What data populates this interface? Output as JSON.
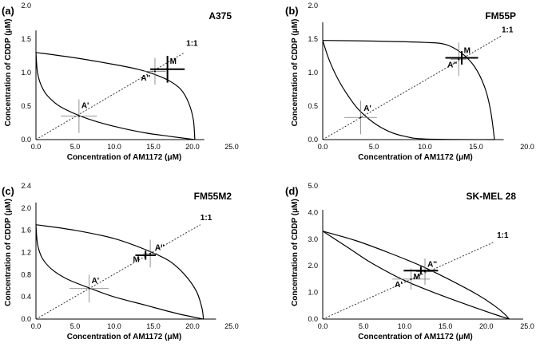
{
  "chart_data": [
    {
      "type": "line",
      "panel_label": "(a)",
      "title": "A375",
      "xlabel": "Concentration of AM1172 (μM)",
      "ylabel": "Concentration of CDDP (μM)",
      "xlim": [
        0,
        25
      ],
      "ylim": [
        0,
        2
      ],
      "xticks": [
        "0.0",
        "5.0",
        "10.0",
        "15.0",
        "20.0",
        "25.0"
      ],
      "yticks": [
        "0.0",
        "0.5",
        "1.0",
        "1.5",
        "2.0"
      ],
      "x_axis_end": 21.5,
      "y_axis_top": 1.63,
      "curves": {
        "upper": [
          [
            0,
            1.3
          ],
          [
            5,
            1.22
          ],
          [
            10,
            1.12
          ],
          [
            13,
            1.05
          ],
          [
            15,
            0.98
          ],
          [
            17,
            0.88
          ],
          [
            18.5,
            0.75
          ],
          [
            19.5,
            0.55
          ],
          [
            20.1,
            0.3
          ],
          [
            20.3,
            0
          ]
        ],
        "lower": [
          [
            0,
            1.3
          ],
          [
            0.2,
            1.0
          ],
          [
            0.7,
            0.8
          ],
          [
            1.5,
            0.65
          ],
          [
            3,
            0.5
          ],
          [
            5.5,
            0.36
          ],
          [
            8,
            0.26
          ],
          [
            11,
            0.17
          ],
          [
            14,
            0.1
          ],
          [
            17,
            0.05
          ],
          [
            20.3,
            0
          ]
        ]
      },
      "ratio_line": {
        "label": "1:1",
        "points": [
          [
            0,
            0
          ],
          [
            19,
            1.3
          ]
        ]
      },
      "points": [
        {
          "label": "A'",
          "x": 5.5,
          "y": 0.35,
          "xerr": 2.3,
          "yerr": 0.25,
          "label_dx": 0.3,
          "label_dy": 0.12
        },
        {
          "label": "A''",
          "x": 15.2,
          "y": 1.02,
          "xerr": 1.4,
          "yerr": 0.2,
          "label_dx": -1.8,
          "label_dy": -0.14
        },
        {
          "label": "M",
          "x": 16.8,
          "y": 1.05,
          "xerr": 2.2,
          "yerr": 0.2,
          "label_dx": 0.3,
          "label_dy": 0.08,
          "bold": true
        }
      ],
      "ratio_label_pos": [
        19.2,
        1.4
      ]
    },
    {
      "type": "line",
      "panel_label": "(b)",
      "title": "FM55P",
      "xlabel": "Concentration of AM1172 (μM)",
      "ylabel": "Concentration of CDDP (μM)",
      "xlim": [
        0,
        20
      ],
      "ylim": [
        0,
        2
      ],
      "xticks": [
        "0.0",
        "5.0",
        "10.0",
        "15.0",
        "20.0"
      ],
      "yticks": [
        "0.0",
        "0.5",
        "1.0",
        "1.5",
        "2.0"
      ],
      "x_axis_end": 17.7,
      "y_axis_top": 1.75,
      "curves": {
        "upper": [
          [
            0,
            1.48
          ],
          [
            5,
            1.47
          ],
          [
            10,
            1.45
          ],
          [
            12,
            1.42
          ],
          [
            13.5,
            1.3
          ],
          [
            14.8,
            1.1
          ],
          [
            15.8,
            0.8
          ],
          [
            16.4,
            0.45
          ],
          [
            16.8,
            0
          ]
        ],
        "lower": [
          [
            0,
            1.48
          ],
          [
            0.6,
            1.2
          ],
          [
            1.5,
            0.9
          ],
          [
            2.5,
            0.65
          ],
          [
            3.5,
            0.45
          ],
          [
            5,
            0.25
          ],
          [
            6.5,
            0.12
          ],
          [
            8,
            0.05
          ],
          [
            10,
            0.01
          ],
          [
            16.8,
            0
          ]
        ]
      },
      "ratio_line": {
        "label": "1:1",
        "points": [
          [
            0,
            0
          ],
          [
            17.5,
            1.55
          ]
        ]
      },
      "points": [
        {
          "label": "A'",
          "x": 3.7,
          "y": 0.33,
          "xerr": 1.6,
          "yerr": 0.25,
          "label_dx": 0.3,
          "label_dy": 0.1
        },
        {
          "label": "A''",
          "x": 13.3,
          "y": 1.2,
          "xerr": 0.8,
          "yerr": 0.25,
          "label_dx": -1.1,
          "label_dy": -0.12
        },
        {
          "label": "M",
          "x": 13.6,
          "y": 1.22,
          "xerr": 1.6,
          "yerr": 0.1,
          "label_dx": 0.2,
          "label_dy": 0.07,
          "bold": true
        }
      ],
      "ratio_label_pos": [
        17.5,
        1.6
      ]
    },
    {
      "type": "line",
      "panel_label": "(c)",
      "title": "FM55M2",
      "xlabel": "Concentration of AM1172 (μM)",
      "ylabel": "Concentration of CDDP (μM)",
      "xlim": [
        0,
        25
      ],
      "ylim": [
        0,
        2.4
      ],
      "xticks": [
        "0.0",
        "5.0",
        "10.0",
        "15.0",
        "20.0",
        "25.0"
      ],
      "yticks": [
        "0.0",
        "0.4",
        "0.8",
        "1.2",
        "1.6",
        "2.0",
        "2.4"
      ],
      "x_axis_end": 23,
      "y_axis_top": 2.1,
      "curves": {
        "upper": [
          [
            0,
            1.7
          ],
          [
            5,
            1.6
          ],
          [
            10,
            1.45
          ],
          [
            14,
            1.25
          ],
          [
            17,
            1.05
          ],
          [
            19,
            0.8
          ],
          [
            20.5,
            0.5
          ],
          [
            21.2,
            0.2
          ],
          [
            21.4,
            0
          ]
        ],
        "lower": [
          [
            0,
            1.7
          ],
          [
            0.2,
            1.35
          ],
          [
            0.8,
            1.1
          ],
          [
            2,
            0.9
          ],
          [
            4,
            0.72
          ],
          [
            7,
            0.55
          ],
          [
            10,
            0.4
          ],
          [
            14,
            0.25
          ],
          [
            18,
            0.1
          ],
          [
            21.4,
            0
          ]
        ]
      },
      "ratio_line": {
        "label": "1:1",
        "points": [
          [
            0,
            0
          ],
          [
            21,
            1.7
          ]
        ]
      },
      "points": [
        {
          "label": "A'",
          "x": 6.8,
          "y": 0.55,
          "xerr": 2.5,
          "yerr": 0.25,
          "label_dx": 0.3,
          "label_dy": 0.1
        },
        {
          "label": "A''",
          "x": 14.6,
          "y": 1.18,
          "xerr": 0.9,
          "yerr": 0.25,
          "label_dx": 0.6,
          "label_dy": 0.06
        },
        {
          "label": "M",
          "x": 14.0,
          "y": 1.15,
          "xerr": 1.3,
          "yerr": 0.08,
          "label_dx": -1.6,
          "label_dy": -0.12,
          "bold": true
        }
      ],
      "ratio_label_pos": [
        21,
        1.78
      ]
    },
    {
      "type": "line",
      "panel_label": "(d)",
      "title": "SK-MEL 28",
      "xlabel": "Concentration of AM1172 (μM)",
      "ylabel": "Concentration of CDDP (μM)",
      "xlim": [
        0,
        25
      ],
      "ylim": [
        0,
        5
      ],
      "xticks": [
        "0.0",
        "5.0",
        "10.0",
        "15.0",
        "20.0",
        "25.0"
      ],
      "yticks": [
        "0.0",
        "1.0",
        "2.0",
        "3.0",
        "4.0",
        "5.0"
      ],
      "x_axis_end": 24.5,
      "y_axis_top": 4.1,
      "curves": {
        "upper": [
          [
            0,
            3.3
          ],
          [
            4,
            2.95
          ],
          [
            8,
            2.5
          ],
          [
            12,
            2
          ],
          [
            16,
            1.4
          ],
          [
            19,
            0.9
          ],
          [
            21,
            0.5
          ],
          [
            22.2,
            0.2
          ],
          [
            22.8,
            0
          ]
        ],
        "lower": [
          [
            0,
            3.3
          ],
          [
            3,
            2.7
          ],
          [
            6,
            2.1
          ],
          [
            10,
            1.45
          ],
          [
            14,
            0.95
          ],
          [
            18,
            0.5
          ],
          [
            21,
            0.18
          ],
          [
            22.8,
            0
          ]
        ]
      },
      "ratio_line": {
        "label": "1:1",
        "points": [
          [
            0,
            0
          ],
          [
            21,
            2.9
          ]
        ]
      },
      "points": [
        {
          "label": "A'",
          "x": 10.8,
          "y": 1.5,
          "xerr": 2.3,
          "yerr": 0.4,
          "label_dx": -2.0,
          "label_dy": -0.3
        },
        {
          "label": "A''",
          "x": 12.5,
          "y": 1.78,
          "xerr": 1.1,
          "yerr": 0.5,
          "label_dx": 0.3,
          "label_dy": 0.18
        },
        {
          "label": "M",
          "x": 12.0,
          "y": 1.82,
          "xerr": 2.1,
          "yerr": 0.15,
          "label_dx": -0.9,
          "label_dy": -0.32,
          "bold": true
        }
      ],
      "ratio_label_pos": [
        21.3,
        3.05
      ]
    }
  ]
}
